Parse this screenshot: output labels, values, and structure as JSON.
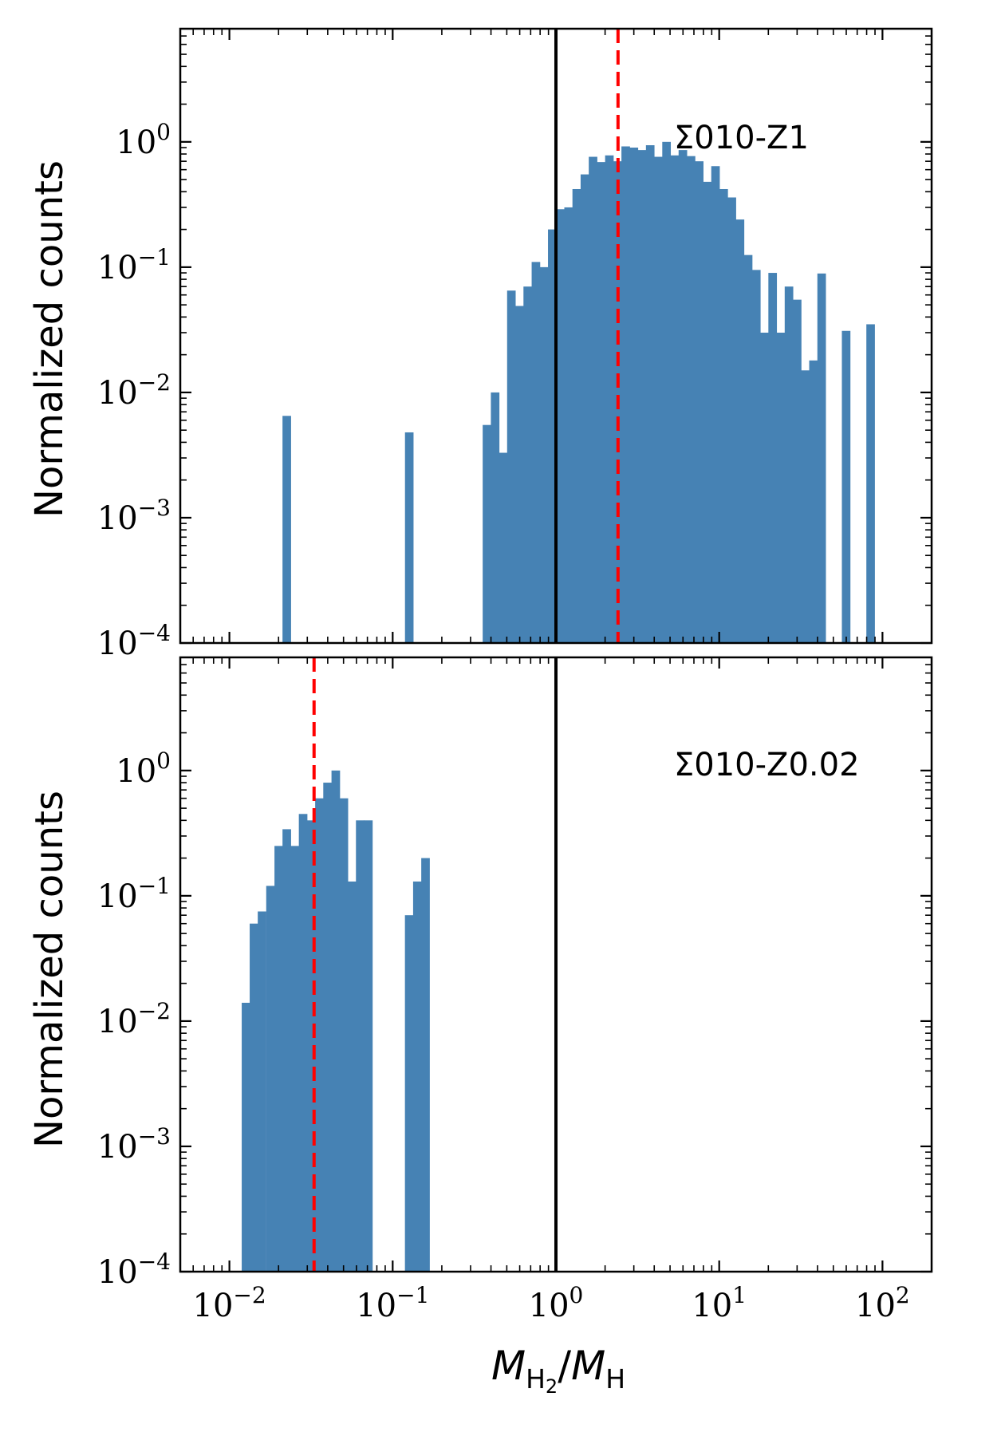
{
  "figure": {
    "ylabel": "Normalized counts",
    "xlabel": {
      "main": "M",
      "sub1": "H",
      "sub2": "2",
      "sep": "/",
      "main2": "M",
      "sub3": "H"
    }
  },
  "styles": {
    "bar_color": "#4682b4",
    "reference_line_color": "#000000",
    "median_line_color": "#ff0000"
  },
  "chart_data": [
    {
      "type": "bar",
      "title": "",
      "annotation": "Σ010-Z1",
      "ylabel": "Normalized counts",
      "xlabel": "M_H2/M_H",
      "xscale": "log",
      "yscale": "log",
      "xlim": [
        0.005,
        200
      ],
      "ylim": [
        0.0001,
        8
      ],
      "xticks": [
        {
          "base": "10",
          "exp": "−2"
        },
        {
          "base": "10",
          "exp": "−1"
        },
        {
          "base": "10",
          "exp": "0"
        },
        {
          "base": "10",
          "exp": "1"
        },
        {
          "base": "10",
          "exp": "2"
        }
      ],
      "yticks": [
        {
          "base": "10",
          "exp": "−4"
        },
        {
          "base": "10",
          "exp": "−3"
        },
        {
          "base": "10",
          "exp": "−2"
        },
        {
          "base": "10",
          "exp": "−1"
        },
        {
          "base": "10",
          "exp": "0"
        }
      ],
      "reference_line_x": 1,
      "median_line_x": 2.4,
      "bin_width_dex": 0.05,
      "bins": [
        [
          0.0224,
          0.0065
        ],
        [
          0.126,
          0.0048
        ],
        [
          0.377,
          0.0055
        ],
        [
          0.423,
          0.01
        ],
        [
          0.475,
          0.0033
        ],
        [
          0.532,
          0.065
        ],
        [
          0.597,
          0.049
        ],
        [
          0.67,
          0.07
        ],
        [
          0.752,
          0.11
        ],
        [
          0.844,
          0.1
        ],
        [
          0.947,
          0.2
        ],
        [
          1.062,
          0.29
        ],
        [
          1.192,
          0.3
        ],
        [
          1.337,
          0.42
        ],
        [
          1.5,
          0.55
        ],
        [
          1.683,
          0.76
        ],
        [
          1.889,
          0.69
        ],
        [
          2.119,
          0.78
        ],
        [
          2.378,
          0.7
        ],
        [
          2.668,
          0.92
        ],
        [
          2.994,
          0.9
        ],
        [
          3.359,
          0.86
        ],
        [
          3.769,
          0.94
        ],
        [
          4.229,
          0.76
        ],
        [
          4.745,
          1.0
        ],
        [
          5.324,
          0.78
        ],
        [
          5.974,
          0.86
        ],
        [
          6.703,
          0.77
        ],
        [
          7.521,
          0.7
        ],
        [
          8.438,
          0.48
        ],
        [
          9.468,
          0.64
        ],
        [
          10.62,
          0.42
        ],
        [
          11.92,
          0.36
        ],
        [
          13.37,
          0.24
        ],
        [
          15.0,
          0.125
        ],
        [
          16.83,
          0.095
        ],
        [
          18.89,
          0.03
        ],
        [
          21.19,
          0.09
        ],
        [
          23.78,
          0.03
        ],
        [
          26.68,
          0.07
        ],
        [
          29.94,
          0.055
        ],
        [
          33.59,
          0.015
        ],
        [
          37.69,
          0.018
        ],
        [
          42.29,
          0.089
        ],
        [
          59.74,
          0.031
        ],
        [
          84.38,
          0.035
        ]
      ]
    },
    {
      "type": "bar",
      "title": "",
      "annotation": "Σ010-Z0.02",
      "ylabel": "Normalized counts",
      "xlabel": "M_H2/M_H",
      "xscale": "log",
      "yscale": "log",
      "xlim": [
        0.005,
        200
      ],
      "ylim": [
        0.0001,
        8
      ],
      "xticks": [
        {
          "base": "10",
          "exp": "−2"
        },
        {
          "base": "10",
          "exp": "−1"
        },
        {
          "base": "10",
          "exp": "0"
        },
        {
          "base": "10",
          "exp": "1"
        },
        {
          "base": "10",
          "exp": "2"
        }
      ],
      "yticks": [
        {
          "base": "10",
          "exp": "−4"
        },
        {
          "base": "10",
          "exp": "−3"
        },
        {
          "base": "10",
          "exp": "−2"
        },
        {
          "base": "10",
          "exp": "−1"
        },
        {
          "base": "10",
          "exp": "0"
        }
      ],
      "reference_line_x": 1,
      "median_line_x": 0.033,
      "bin_width_dex": 0.05,
      "bins": [
        [
          0.0126,
          0.014
        ],
        [
          0.0141,
          0.06
        ],
        [
          0.0158,
          0.075
        ],
        [
          0.0178,
          0.12
        ],
        [
          0.02,
          0.25
        ],
        [
          0.0224,
          0.34
        ],
        [
          0.0251,
          0.25
        ],
        [
          0.0282,
          0.45
        ],
        [
          0.0316,
          0.4
        ],
        [
          0.0355,
          0.6
        ],
        [
          0.0398,
          0.8
        ],
        [
          0.0447,
          1.0
        ],
        [
          0.0501,
          0.6
        ],
        [
          0.0562,
          0.13
        ],
        [
          0.0631,
          0.4
        ],
        [
          0.0708,
          0.4
        ],
        [
          0.1259,
          0.07
        ],
        [
          0.1413,
          0.13
        ],
        [
          0.1585,
          0.2
        ]
      ]
    }
  ]
}
